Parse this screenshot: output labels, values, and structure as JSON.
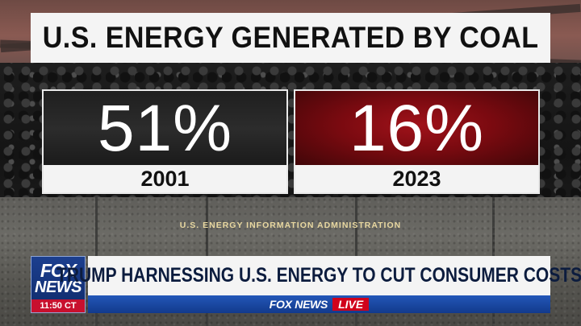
{
  "headline": "U.S. ENERGY GENERATED BY COAL",
  "stats": [
    {
      "value": "51%",
      "year": "2001",
      "color": "#2a2a2a"
    },
    {
      "value": "16%",
      "year": "2023",
      "color": "#8b0d14"
    }
  ],
  "source": "U.S. ENERGY INFORMATION ADMINISTRATION",
  "lower_third": {
    "logo_top": "FOX",
    "logo_bottom": "NEWS",
    "time": "11:50 CT",
    "banner": "TRUMP HARNESSING U.S. ENERGY TO CUT CONSUMER COSTS",
    "ticker_brand": "FOX NEWS",
    "live_label": "LIVE"
  },
  "colors": {
    "brand_blue": "#123a8c",
    "live_red": "#d0021b",
    "source_gold": "#e8d7a0"
  }
}
